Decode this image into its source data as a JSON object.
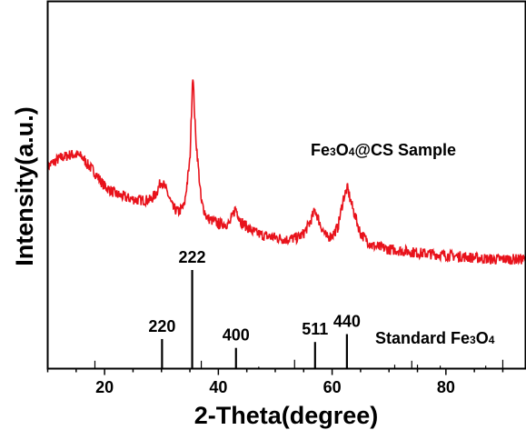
{
  "chart_data": {
    "type": "line",
    "xlabel": "2-Theta(degree)",
    "ylabel": "Intensity(a.u.)",
    "xlim": [
      10,
      94
    ],
    "x_ticks": [
      20,
      40,
      60,
      80
    ],
    "grid": false,
    "colors": {
      "sample": "#e8121b",
      "standard": "#000000",
      "axes": "#000000"
    },
    "series": [
      {
        "name": "Fe₃O₄@CS Sample",
        "label_main": "Fe",
        "label_sub1": "3",
        "label_mid": "O",
        "label_sub2": "4",
        "label_rest": "@CS Sample",
        "note": "relative intensity, arbitrary units",
        "x": [
          10,
          12,
          14,
          15,
          16,
          17,
          18,
          19,
          20,
          22,
          24,
          26,
          28,
          29,
          30,
          31,
          32,
          33,
          34,
          35,
          35.5,
          36,
          37,
          38,
          40,
          42,
          43,
          44,
          46,
          48,
          50,
          52,
          54,
          55,
          56,
          57,
          58,
          59,
          60,
          61,
          62,
          62.7,
          63.5,
          65,
          67,
          70,
          73,
          76,
          80,
          84,
          88,
          92,
          94
        ],
        "y": [
          0.52,
          0.56,
          0.58,
          0.58,
          0.57,
          0.53,
          0.5,
          0.46,
          0.42,
          0.38,
          0.36,
          0.35,
          0.35,
          0.38,
          0.45,
          0.39,
          0.31,
          0.29,
          0.32,
          0.55,
          1.0,
          0.68,
          0.34,
          0.26,
          0.23,
          0.23,
          0.31,
          0.24,
          0.19,
          0.17,
          0.16,
          0.15,
          0.16,
          0.18,
          0.23,
          0.3,
          0.22,
          0.16,
          0.17,
          0.21,
          0.36,
          0.41,
          0.32,
          0.18,
          0.12,
          0.1,
          0.09,
          0.08,
          0.07,
          0.06,
          0.05,
          0.05,
          0.05
        ]
      },
      {
        "name": "Standard Fe₃O₄",
        "label_main": "Standard Fe",
        "label_sub1": "3",
        "label_mid": "O",
        "label_sub2": "4",
        "sticks": [
          {
            "x": 18.3,
            "h": 0.08,
            "label": ""
          },
          {
            "x": 30.1,
            "h": 0.3,
            "label": "220"
          },
          {
            "x": 35.4,
            "h": 1.0,
            "label": "222"
          },
          {
            "x": 37.0,
            "h": 0.08,
            "label": ""
          },
          {
            "x": 43.1,
            "h": 0.21,
            "label": "400"
          },
          {
            "x": 47.1,
            "h": 0.02,
            "label": ""
          },
          {
            "x": 53.4,
            "h": 0.09,
            "label": ""
          },
          {
            "x": 57.0,
            "h": 0.27,
            "label": "511"
          },
          {
            "x": 62.6,
            "h": 0.35,
            "label": "440"
          },
          {
            "x": 71.0,
            "h": 0.04,
            "label": ""
          },
          {
            "x": 74.0,
            "h": 0.08,
            "label": ""
          },
          {
            "x": 75.0,
            "h": 0.04,
            "label": ""
          },
          {
            "x": 79.0,
            "h": 0.03,
            "label": ""
          },
          {
            "x": 87.0,
            "h": 0.03,
            "label": ""
          },
          {
            "x": 90.0,
            "h": 0.09,
            "label": ""
          }
        ]
      }
    ]
  }
}
